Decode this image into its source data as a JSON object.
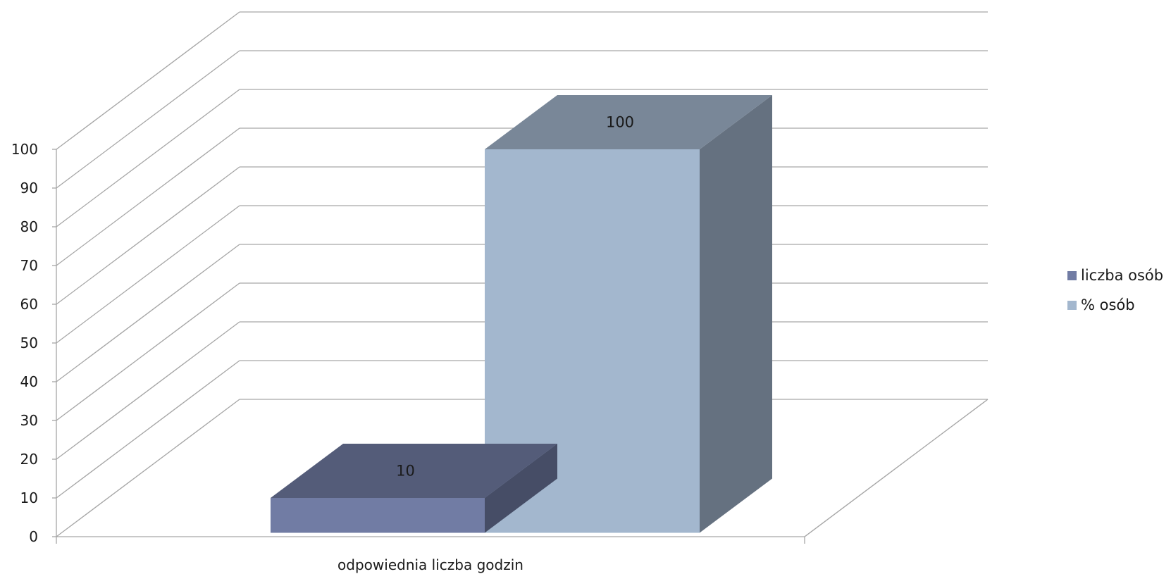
{
  "chart_data": {
    "type": "bar",
    "categories": [
      "odpowiednia liczba godzin"
    ],
    "series": [
      {
        "name": "liczba osób",
        "values": [
          10
        ],
        "color": "#717ca4"
      },
      {
        "name": "% osób",
        "values": [
          100
        ],
        "color": "#a3b7ce"
      }
    ],
    "data_labels": [
      "10",
      "100"
    ],
    "yticks": [
      "0",
      "10",
      "20",
      "30",
      "40",
      "50",
      "60",
      "70",
      "80",
      "90",
      "100"
    ],
    "ylim": [
      0,
      100
    ],
    "grid": true,
    "legend": "right",
    "title": "",
    "xlabel": "",
    "ylabel": ""
  }
}
